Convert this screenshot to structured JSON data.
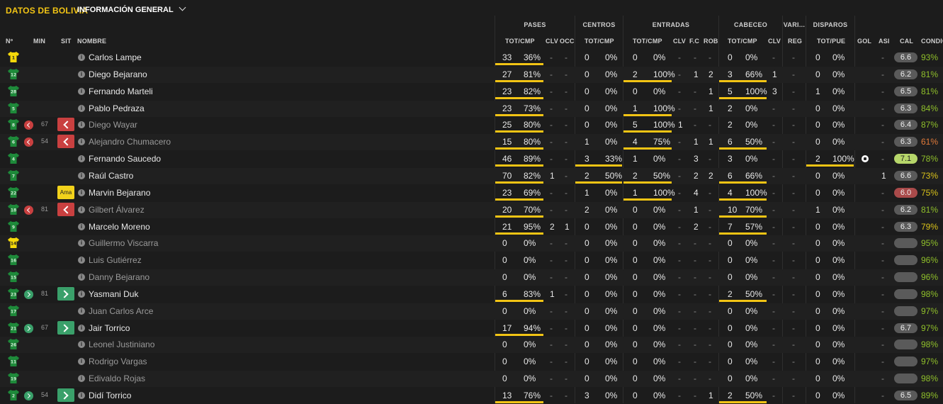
{
  "header": {
    "title": "DATOS DE BOLIVIA",
    "view_label": "INFORMACIÓN GENERAL"
  },
  "groups": {
    "pases": "PASES",
    "centros": "CENTROS",
    "entradas": "ENTRADAS",
    "cabeceo": "CABECEO",
    "varios": "VARI...",
    "disparos": "DISPAROS"
  },
  "columns": {
    "num": "Nº",
    "min": "MIN",
    "sit": "SIT",
    "nombre": "NOMBRE",
    "pas_tot": "TOT/CMP",
    "pas_clv": "CLV",
    "pas_occ": "OCC",
    "cen_tot": "TOT/CMP",
    "ent_tot": "TOT/CMP",
    "ent_clv": "CLV",
    "ent_fc": "F.C",
    "ent_rob": "ROB",
    "cab_tot": "TOT/CMP",
    "cab_clv": "CLV",
    "var_reg": "REG",
    "dis_tot": "TOT/PUE",
    "gol": "GOL",
    "asi": "ASI",
    "cal": "CAL",
    "cond": "CONDIC"
  },
  "colors": {
    "accent": "#f2c414",
    "sub_out": "#c94040",
    "sub_in": "#3aa06a",
    "yellow_card": "#f2d21b",
    "cond_green": "#8fbf2a",
    "cond_yellow": "#d9c21a",
    "cond_orange": "#e07a3a"
  },
  "players": [
    {
      "num": "1",
      "gk": true,
      "min": "",
      "sit": "",
      "sit_label": "",
      "sub": false,
      "name": "Carlos Lampe",
      "pas_t": "33",
      "pas_p": "36%",
      "pas_clv": "-",
      "pas_occ": "-",
      "cen_t": "0",
      "cen_p": "0%",
      "ent_t": "0",
      "ent_p": "0%",
      "ent_clv": "-",
      "ent_fc": "-",
      "ent_rob": "-",
      "cab_t": "0",
      "cab_p": "0%",
      "cab_clv": "-",
      "reg": "-",
      "dis_t": "0",
      "dis_p": "0%",
      "gol": "",
      "asi": "-",
      "cal": "6.6",
      "cond": "93%",
      "cond_color": "green",
      "pas_bar": true,
      "cen_bar": false,
      "ent_bar": false,
      "cab_bar": false,
      "dis_bar": false
    },
    {
      "num": "12",
      "gk": false,
      "min": "",
      "sit": "",
      "sit_label": "",
      "sub": false,
      "name": "Diego Bejarano",
      "pas_t": "27",
      "pas_p": "81%",
      "pas_clv": "-",
      "pas_occ": "-",
      "cen_t": "0",
      "cen_p": "0%",
      "ent_t": "2",
      "ent_p": "100%",
      "ent_clv": "-",
      "ent_fc": "1",
      "ent_rob": "2",
      "cab_t": "3",
      "cab_p": "66%",
      "cab_clv": "1",
      "reg": "-",
      "dis_t": "0",
      "dis_p": "0%",
      "gol": "",
      "asi": "-",
      "cal": "6.2",
      "cond": "81%",
      "cond_color": "green",
      "pas_bar": true,
      "cen_bar": false,
      "ent_bar": true,
      "cab_bar": true,
      "dis_bar": false
    },
    {
      "num": "28",
      "gk": false,
      "min": "",
      "sit": "",
      "sit_label": "",
      "sub": false,
      "name": "Fernando Marteli",
      "pas_t": "23",
      "pas_p": "82%",
      "pas_clv": "-",
      "pas_occ": "-",
      "cen_t": "0",
      "cen_p": "0%",
      "ent_t": "0",
      "ent_p": "0%",
      "ent_clv": "-",
      "ent_fc": "-",
      "ent_rob": "1",
      "cab_t": "5",
      "cab_p": "100%",
      "cab_clv": "3",
      "reg": "-",
      "dis_t": "1",
      "dis_p": "0%",
      "gol": "",
      "asi": "-",
      "cal": "6.5",
      "cond": "81%",
      "cond_color": "green",
      "pas_bar": true,
      "cen_bar": false,
      "ent_bar": false,
      "cab_bar": true,
      "dis_bar": false
    },
    {
      "num": "5",
      "gk": false,
      "min": "",
      "sit": "",
      "sit_label": "",
      "sub": false,
      "name": "Pablo Pedraza",
      "pas_t": "23",
      "pas_p": "73%",
      "pas_clv": "-",
      "pas_occ": "-",
      "cen_t": "0",
      "cen_p": "0%",
      "ent_t": "1",
      "ent_p": "100%",
      "ent_clv": "-",
      "ent_fc": "-",
      "ent_rob": "1",
      "cab_t": "2",
      "cab_p": "0%",
      "cab_clv": "-",
      "reg": "-",
      "dis_t": "0",
      "dis_p": "0%",
      "gol": "",
      "asi": "-",
      "cal": "6.3",
      "cond": "84%",
      "cond_color": "green",
      "pas_bar": true,
      "cen_bar": false,
      "ent_bar": true,
      "cab_bar": false,
      "dis_bar": false
    },
    {
      "num": "8",
      "gk": false,
      "min": "67",
      "sit": "out",
      "sit_label": "",
      "sub": true,
      "name": "Diego Wayar",
      "pas_t": "25",
      "pas_p": "80%",
      "pas_clv": "-",
      "pas_occ": "-",
      "cen_t": "0",
      "cen_p": "0%",
      "ent_t": "5",
      "ent_p": "100%",
      "ent_clv": "1",
      "ent_fc": "-",
      "ent_rob": "-",
      "cab_t": "2",
      "cab_p": "0%",
      "cab_clv": "-",
      "reg": "-",
      "dis_t": "0",
      "dis_p": "0%",
      "gol": "",
      "asi": "-",
      "cal": "6.4",
      "cond": "87%",
      "cond_color": "green",
      "pas_bar": true,
      "cen_bar": false,
      "ent_bar": true,
      "cab_bar": false,
      "dis_bar": false
    },
    {
      "num": "6",
      "gk": false,
      "min": "54",
      "sit": "out",
      "sit_label": "",
      "sub": true,
      "name": "Alejandro Chumacero",
      "pas_t": "15",
      "pas_p": "80%",
      "pas_clv": "-",
      "pas_occ": "-",
      "cen_t": "1",
      "cen_p": "0%",
      "ent_t": "4",
      "ent_p": "75%",
      "ent_clv": "-",
      "ent_fc": "1",
      "ent_rob": "1",
      "cab_t": "6",
      "cab_p": "50%",
      "cab_clv": "-",
      "reg": "-",
      "dis_t": "0",
      "dis_p": "0%",
      "gol": "",
      "asi": "-",
      "cal": "6.3",
      "cond": "61%",
      "cond_color": "orange",
      "pas_bar": true,
      "cen_bar": false,
      "ent_bar": true,
      "cab_bar": true,
      "dis_bar": false
    },
    {
      "num": "4",
      "gk": false,
      "min": "",
      "sit": "",
      "sit_label": "",
      "sub": false,
      "name": "Fernando Saucedo",
      "pas_t": "46",
      "pas_p": "89%",
      "pas_clv": "-",
      "pas_occ": "-",
      "cen_t": "3",
      "cen_p": "33%",
      "ent_t": "1",
      "ent_p": "0%",
      "ent_clv": "-",
      "ent_fc": "3",
      "ent_rob": "-",
      "cab_t": "3",
      "cab_p": "0%",
      "cab_clv": "-",
      "reg": "-",
      "dis_t": "2",
      "dis_p": "100%",
      "gol": "ball",
      "asi": "-",
      "cal": "7.1",
      "cond": "78%",
      "cond_color": "green",
      "pas_bar": true,
      "cen_bar": true,
      "ent_bar": false,
      "cab_bar": false,
      "dis_bar": true
    },
    {
      "num": "7",
      "gk": false,
      "min": "",
      "sit": "",
      "sit_label": "",
      "sub": false,
      "name": "Raúl Castro",
      "pas_t": "70",
      "pas_p": "82%",
      "pas_clv": "1",
      "pas_occ": "-",
      "cen_t": "2",
      "cen_p": "50%",
      "ent_t": "2",
      "ent_p": "50%",
      "ent_clv": "-",
      "ent_fc": "2",
      "ent_rob": "2",
      "cab_t": "6",
      "cab_p": "66%",
      "cab_clv": "-",
      "reg": "-",
      "dis_t": "0",
      "dis_p": "0%",
      "gol": "",
      "asi": "1",
      "cal": "6.6",
      "cond": "73%",
      "cond_color": "yellow",
      "pas_bar": true,
      "cen_bar": true,
      "ent_bar": true,
      "cab_bar": true,
      "dis_bar": false
    },
    {
      "num": "22",
      "gk": false,
      "min": "",
      "sit": "yellow",
      "sit_label": "Ama",
      "sub": false,
      "name": "Marvin Bejarano",
      "pas_t": "23",
      "pas_p": "69%",
      "pas_clv": "-",
      "pas_occ": "-",
      "cen_t": "1",
      "cen_p": "0%",
      "ent_t": "1",
      "ent_p": "100%",
      "ent_clv": "-",
      "ent_fc": "4",
      "ent_rob": "-",
      "cab_t": "4",
      "cab_p": "100%",
      "cab_clv": "-",
      "reg": "-",
      "dis_t": "0",
      "dis_p": "0%",
      "gol": "",
      "asi": "-",
      "cal": "6.0",
      "cond": "75%",
      "cond_color": "yellow",
      "pas_bar": true,
      "cen_bar": false,
      "ent_bar": true,
      "cab_bar": true,
      "dis_bar": false,
      "low": true
    },
    {
      "num": "18",
      "gk": false,
      "min": "81",
      "sit": "out",
      "sit_label": "",
      "sub": true,
      "name": "Gilbert Álvarez",
      "pas_t": "20",
      "pas_p": "70%",
      "pas_clv": "-",
      "pas_occ": "-",
      "cen_t": "2",
      "cen_p": "0%",
      "ent_t": "0",
      "ent_p": "0%",
      "ent_clv": "-",
      "ent_fc": "1",
      "ent_rob": "-",
      "cab_t": "10",
      "cab_p": "70%",
      "cab_clv": "-",
      "reg": "-",
      "dis_t": "1",
      "dis_p": "0%",
      "gol": "",
      "asi": "-",
      "cal": "6.2",
      "cond": "81%",
      "cond_color": "green",
      "pas_bar": true,
      "cen_bar": false,
      "ent_bar": false,
      "cab_bar": true,
      "dis_bar": false
    },
    {
      "num": "9",
      "gk": false,
      "min": "",
      "sit": "",
      "sit_label": "",
      "sub": false,
      "name": "Marcelo Moreno",
      "pas_t": "21",
      "pas_p": "95%",
      "pas_clv": "2",
      "pas_occ": "1",
      "cen_t": "0",
      "cen_p": "0%",
      "ent_t": "0",
      "ent_p": "0%",
      "ent_clv": "-",
      "ent_fc": "2",
      "ent_rob": "-",
      "cab_t": "7",
      "cab_p": "57%",
      "cab_clv": "-",
      "reg": "-",
      "dis_t": "0",
      "dis_p": "0%",
      "gol": "",
      "asi": "-",
      "cal": "6.3",
      "cond": "79%",
      "cond_color": "yellow",
      "pas_bar": true,
      "cen_bar": false,
      "ent_bar": false,
      "cab_bar": true,
      "dis_bar": false
    },
    {
      "num": "14",
      "gk": true,
      "min": "",
      "sit": "",
      "sit_label": "",
      "sub": true,
      "name": "Guillermo Viscarra",
      "pas_t": "0",
      "pas_p": "0%",
      "pas_clv": "-",
      "pas_occ": "-",
      "cen_t": "0",
      "cen_p": "0%",
      "ent_t": "0",
      "ent_p": "0%",
      "ent_clv": "-",
      "ent_fc": "-",
      "ent_rob": "-",
      "cab_t": "0",
      "cab_p": "0%",
      "cab_clv": "-",
      "reg": "-",
      "dis_t": "0",
      "dis_p": "0%",
      "gol": "",
      "asi": "-",
      "cal": "-",
      "cond": "95%",
      "cond_color": "green",
      "pas_bar": false,
      "cen_bar": false,
      "ent_bar": false,
      "cab_bar": false,
      "dis_bar": false
    },
    {
      "num": "16",
      "gk": false,
      "min": "",
      "sit": "",
      "sit_label": "",
      "sub": true,
      "name": "Luis Gutiérrez",
      "pas_t": "0",
      "pas_p": "0%",
      "pas_clv": "-",
      "pas_occ": "-",
      "cen_t": "0",
      "cen_p": "0%",
      "ent_t": "0",
      "ent_p": "0%",
      "ent_clv": "-",
      "ent_fc": "-",
      "ent_rob": "-",
      "cab_t": "0",
      "cab_p": "0%",
      "cab_clv": "-",
      "reg": "-",
      "dis_t": "0",
      "dis_p": "0%",
      "gol": "",
      "asi": "-",
      "cal": "-",
      "cond": "96%",
      "cond_color": "green",
      "pas_bar": false,
      "cen_bar": false,
      "ent_bar": false,
      "cab_bar": false,
      "dis_bar": false
    },
    {
      "num": "15",
      "gk": false,
      "min": "",
      "sit": "",
      "sit_label": "",
      "sub": true,
      "name": "Danny Bejarano",
      "pas_t": "0",
      "pas_p": "0%",
      "pas_clv": "-",
      "pas_occ": "-",
      "cen_t": "0",
      "cen_p": "0%",
      "ent_t": "0",
      "ent_p": "0%",
      "ent_clv": "-",
      "ent_fc": "-",
      "ent_rob": "-",
      "cab_t": "0",
      "cab_p": "0%",
      "cab_clv": "-",
      "reg": "-",
      "dis_t": "0",
      "dis_p": "0%",
      "gol": "",
      "asi": "-",
      "cal": "-",
      "cond": "96%",
      "cond_color": "green",
      "pas_bar": false,
      "cen_bar": false,
      "ent_bar": false,
      "cab_bar": false,
      "dis_bar": false
    },
    {
      "num": "23",
      "gk": false,
      "min": "81",
      "sit": "in",
      "sit_label": "",
      "sub": false,
      "name": "Yasmani Duk",
      "pas_t": "6",
      "pas_p": "83%",
      "pas_clv": "1",
      "pas_occ": "-",
      "cen_t": "0",
      "cen_p": "0%",
      "ent_t": "0",
      "ent_p": "0%",
      "ent_clv": "-",
      "ent_fc": "-",
      "ent_rob": "-",
      "cab_t": "2",
      "cab_p": "50%",
      "cab_clv": "-",
      "reg": "-",
      "dis_t": "0",
      "dis_p": "0%",
      "gol": "",
      "asi": "-",
      "cal": "-",
      "cond": "98%",
      "cond_color": "green",
      "pas_bar": true,
      "cen_bar": false,
      "ent_bar": false,
      "cab_bar": true,
      "dis_bar": false
    },
    {
      "num": "17",
      "gk": false,
      "min": "",
      "sit": "",
      "sit_label": "",
      "sub": true,
      "name": "Juan Carlos Arce",
      "pas_t": "0",
      "pas_p": "0%",
      "pas_clv": "-",
      "pas_occ": "-",
      "cen_t": "0",
      "cen_p": "0%",
      "ent_t": "0",
      "ent_p": "0%",
      "ent_clv": "-",
      "ent_fc": "-",
      "ent_rob": "-",
      "cab_t": "0",
      "cab_p": "0%",
      "cab_clv": "-",
      "reg": "-",
      "dis_t": "0",
      "dis_p": "0%",
      "gol": "",
      "asi": "-",
      "cal": "-",
      "cond": "97%",
      "cond_color": "green",
      "pas_bar": false,
      "cen_bar": false,
      "ent_bar": false,
      "cab_bar": false,
      "dis_bar": false
    },
    {
      "num": "21",
      "gk": false,
      "min": "67",
      "sit": "in",
      "sit_label": "",
      "sub": false,
      "name": "Jair Torrico",
      "pas_t": "17",
      "pas_p": "94%",
      "pas_clv": "-",
      "pas_occ": "-",
      "cen_t": "0",
      "cen_p": "0%",
      "ent_t": "0",
      "ent_p": "0%",
      "ent_clv": "-",
      "ent_fc": "-",
      "ent_rob": "-",
      "cab_t": "0",
      "cab_p": "0%",
      "cab_clv": "-",
      "reg": "-",
      "dis_t": "0",
      "dis_p": "0%",
      "gol": "",
      "asi": "-",
      "cal": "6.7",
      "cond": "97%",
      "cond_color": "green",
      "pas_bar": true,
      "cen_bar": false,
      "ent_bar": false,
      "cab_bar": false,
      "dis_bar": false
    },
    {
      "num": "26",
      "gk": false,
      "min": "",
      "sit": "",
      "sit_label": "",
      "sub": true,
      "name": "Leonel Justiniano",
      "pas_t": "0",
      "pas_p": "0%",
      "pas_clv": "-",
      "pas_occ": "-",
      "cen_t": "0",
      "cen_p": "0%",
      "ent_t": "0",
      "ent_p": "0%",
      "ent_clv": "-",
      "ent_fc": "-",
      "ent_rob": "-",
      "cab_t": "0",
      "cab_p": "0%",
      "cab_clv": "-",
      "reg": "-",
      "dis_t": "0",
      "dis_p": "0%",
      "gol": "",
      "asi": "-",
      "cal": "-",
      "cond": "98%",
      "cond_color": "green",
      "pas_bar": false,
      "cen_bar": false,
      "ent_bar": false,
      "cab_bar": false,
      "dis_bar": false
    },
    {
      "num": "11",
      "gk": false,
      "min": "",
      "sit": "",
      "sit_label": "",
      "sub": true,
      "name": "Rodrigo Vargas",
      "pas_t": "0",
      "pas_p": "0%",
      "pas_clv": "-",
      "pas_occ": "-",
      "cen_t": "0",
      "cen_p": "0%",
      "ent_t": "0",
      "ent_p": "0%",
      "ent_clv": "-",
      "ent_fc": "-",
      "ent_rob": "-",
      "cab_t": "0",
      "cab_p": "0%",
      "cab_clv": "-",
      "reg": "-",
      "dis_t": "0",
      "dis_p": "0%",
      "gol": "",
      "asi": "-",
      "cal": "-",
      "cond": "97%",
      "cond_color": "green",
      "pas_bar": false,
      "cen_bar": false,
      "ent_bar": false,
      "cab_bar": false,
      "dis_bar": false
    },
    {
      "num": "19",
      "gk": false,
      "min": "",
      "sit": "",
      "sit_label": "",
      "sub": true,
      "name": "Edivaldo Rojas",
      "pas_t": "0",
      "pas_p": "0%",
      "pas_clv": "-",
      "pas_occ": "-",
      "cen_t": "0",
      "cen_p": "0%",
      "ent_t": "0",
      "ent_p": "0%",
      "ent_clv": "-",
      "ent_fc": "-",
      "ent_rob": "-",
      "cab_t": "0",
      "cab_p": "0%",
      "cab_clv": "-",
      "reg": "-",
      "dis_t": "0",
      "dis_p": "0%",
      "gol": "",
      "asi": "-",
      "cal": "-",
      "cond": "98%",
      "cond_color": "green",
      "pas_bar": false,
      "cen_bar": false,
      "ent_bar": false,
      "cab_bar": false,
      "dis_bar": false
    },
    {
      "num": "2",
      "gk": false,
      "min": "54",
      "sit": "in",
      "sit_label": "",
      "sub": false,
      "name": "Didí Torrico",
      "pas_t": "13",
      "pas_p": "76%",
      "pas_clv": "-",
      "pas_occ": "-",
      "cen_t": "3",
      "cen_p": "0%",
      "ent_t": "0",
      "ent_p": "0%",
      "ent_clv": "-",
      "ent_fc": "-",
      "ent_rob": "1",
      "cab_t": "2",
      "cab_p": "50%",
      "cab_clv": "-",
      "reg": "-",
      "dis_t": "0",
      "dis_p": "0%",
      "gol": "",
      "asi": "-",
      "cal": "6.5",
      "cond": "89%",
      "cond_color": "green",
      "pas_bar": true,
      "cen_bar": false,
      "ent_bar": false,
      "cab_bar": true,
      "dis_bar": false
    }
  ]
}
